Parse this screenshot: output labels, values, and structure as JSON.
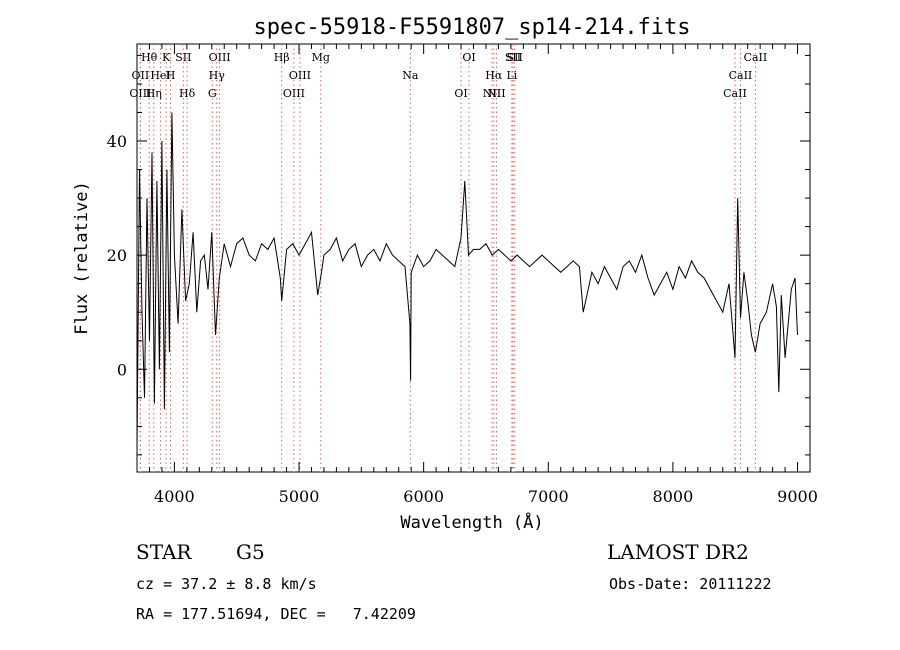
{
  "chart_data": {
    "type": "line",
    "title": "spec-55918-F5591807_sp14-214.fits",
    "xlabel": "Wavelength (Å)",
    "ylabel": "Flux (relative)",
    "xlim": [
      3700,
      9100
    ],
    "ylim": [
      -18,
      57
    ],
    "xticks": [
      4000,
      5000,
      6000,
      7000,
      8000,
      9000
    ],
    "yticks": [
      0,
      20,
      40
    ],
    "grid": false,
    "legend": "none",
    "line_color": "#000000",
    "marker_color": "#e06060",
    "series": [
      {
        "x": [
          3700,
          3720,
          3740,
          3760,
          3780,
          3800,
          3820,
          3840,
          3860,
          3880,
          3900,
          3920,
          3940,
          3960,
          3980,
          4000,
          4030,
          4060,
          4090,
          4120,
          4150,
          4180,
          4210,
          4240,
          4270,
          4300,
          4330,
          4360,
          4400,
          4450,
          4500,
          4550,
          4600,
          4650,
          4700,
          4750,
          4800,
          4850,
          4861,
          4900,
          4950,
          5000,
          5050,
          5100,
          5150,
          5180,
          5200,
          5250,
          5300,
          5350,
          5400,
          5450,
          5500,
          5550,
          5600,
          5650,
          5700,
          5750,
          5800,
          5850,
          5890,
          5895,
          5900,
          5950,
          6000,
          6050,
          6100,
          6150,
          6200,
          6250,
          6300,
          6330,
          6360,
          6400,
          6450,
          6500,
          6550,
          6600,
          6650,
          6700,
          6750,
          6800,
          6850,
          6900,
          6950,
          7000,
          7050,
          7100,
          7150,
          7200,
          7250,
          7280,
          7300,
          7350,
          7400,
          7450,
          7500,
          7550,
          7600,
          7650,
          7700,
          7750,
          7800,
          7850,
          7900,
          7950,
          8000,
          8050,
          8100,
          8150,
          8200,
          8250,
          8300,
          8350,
          8400,
          8450,
          8498,
          8520,
          8542,
          8570,
          8600,
          8630,
          8662,
          8700,
          8750,
          8800,
          8830,
          8850,
          8870,
          8900,
          8950,
          8980,
          9000
        ],
        "y": [
          -14,
          35,
          10,
          -5,
          30,
          5,
          38,
          -6,
          33,
          0,
          40,
          -7,
          35,
          3,
          45,
          20,
          8,
          28,
          12,
          15,
          24,
          10,
          19,
          20,
          14,
          24,
          6,
          16,
          22,
          18,
          22,
          23,
          20,
          19,
          22,
          21,
          23,
          16,
          12,
          21,
          22,
          20,
          22,
          24,
          13,
          17,
          20,
          21,
          23,
          19,
          21,
          22,
          18,
          20,
          21,
          19,
          22,
          20,
          19,
          18,
          8,
          -2,
          17,
          20,
          18,
          19,
          21,
          20,
          19,
          18,
          23,
          33,
          20,
          21,
          21,
          22,
          20,
          21,
          20,
          19,
          20,
          19,
          18,
          19,
          20,
          19,
          18,
          17,
          18,
          19,
          18,
          10,
          12,
          17,
          15,
          18,
          16,
          14,
          18,
          19,
          17,
          20,
          16,
          13,
          15,
          17,
          14,
          18,
          16,
          19,
          17,
          16,
          14,
          12,
          10,
          15,
          2,
          30,
          9,
          17,
          12,
          6,
          3,
          8,
          10,
          15,
          11,
          -4,
          13,
          2,
          14,
          16,
          6
        ]
      }
    ],
    "spectral_lines": [
      {
        "name": "Hθ",
        "wl": 3798
      },
      {
        "name": "OII",
        "wl": 3727
      },
      {
        "name": "OIII",
        "wl": 3727
      },
      {
        "name": "K",
        "wl": 3934
      },
      {
        "name": "HeI",
        "wl": 3889
      },
      {
        "name": "Hη",
        "wl": 3835
      },
      {
        "name": "SII",
        "wl": 4072
      },
      {
        "name": "H",
        "wl": 3969
      },
      {
        "name": "Hδ",
        "wl": 4102
      },
      {
        "name": "OIII",
        "wl": 4363
      },
      {
        "name": "Hγ",
        "wl": 4340
      },
      {
        "name": "G",
        "wl": 4304
      },
      {
        "name": "Hβ",
        "wl": 4861
      },
      {
        "name": "OIII",
        "wl": 5007
      },
      {
        "name": "OIII",
        "wl": 4959
      },
      {
        "name": "Mg",
        "wl": 5175
      },
      {
        "name": "Na",
        "wl": 5893
      },
      {
        "name": "OI",
        "wl": 6300
      },
      {
        "name": "OI",
        "wl": 6364
      },
      {
        "name": "Hα",
        "wl": 6563
      },
      {
        "name": "NII",
        "wl": 6548
      },
      {
        "name": "SII",
        "wl": 6717
      },
      {
        "name": "Li",
        "wl": 6708
      },
      {
        "name": "NII",
        "wl": 6584
      },
      {
        "name": "SII",
        "wl": 6731
      },
      {
        "name": "CaII",
        "wl": 8542
      },
      {
        "name": "CaII",
        "wl": 8498
      },
      {
        "name": "CaII",
        "wl": 8662
      }
    ]
  },
  "info": {
    "class": "STAR",
    "subclass": "G5",
    "survey": "LAMOST DR2",
    "cz": "cz = 37.2 ± 8.8 km/s",
    "obs_date": "Obs-Date: 20111222",
    "coords": "RA = 177.51694, DEC =   7.42209"
  }
}
